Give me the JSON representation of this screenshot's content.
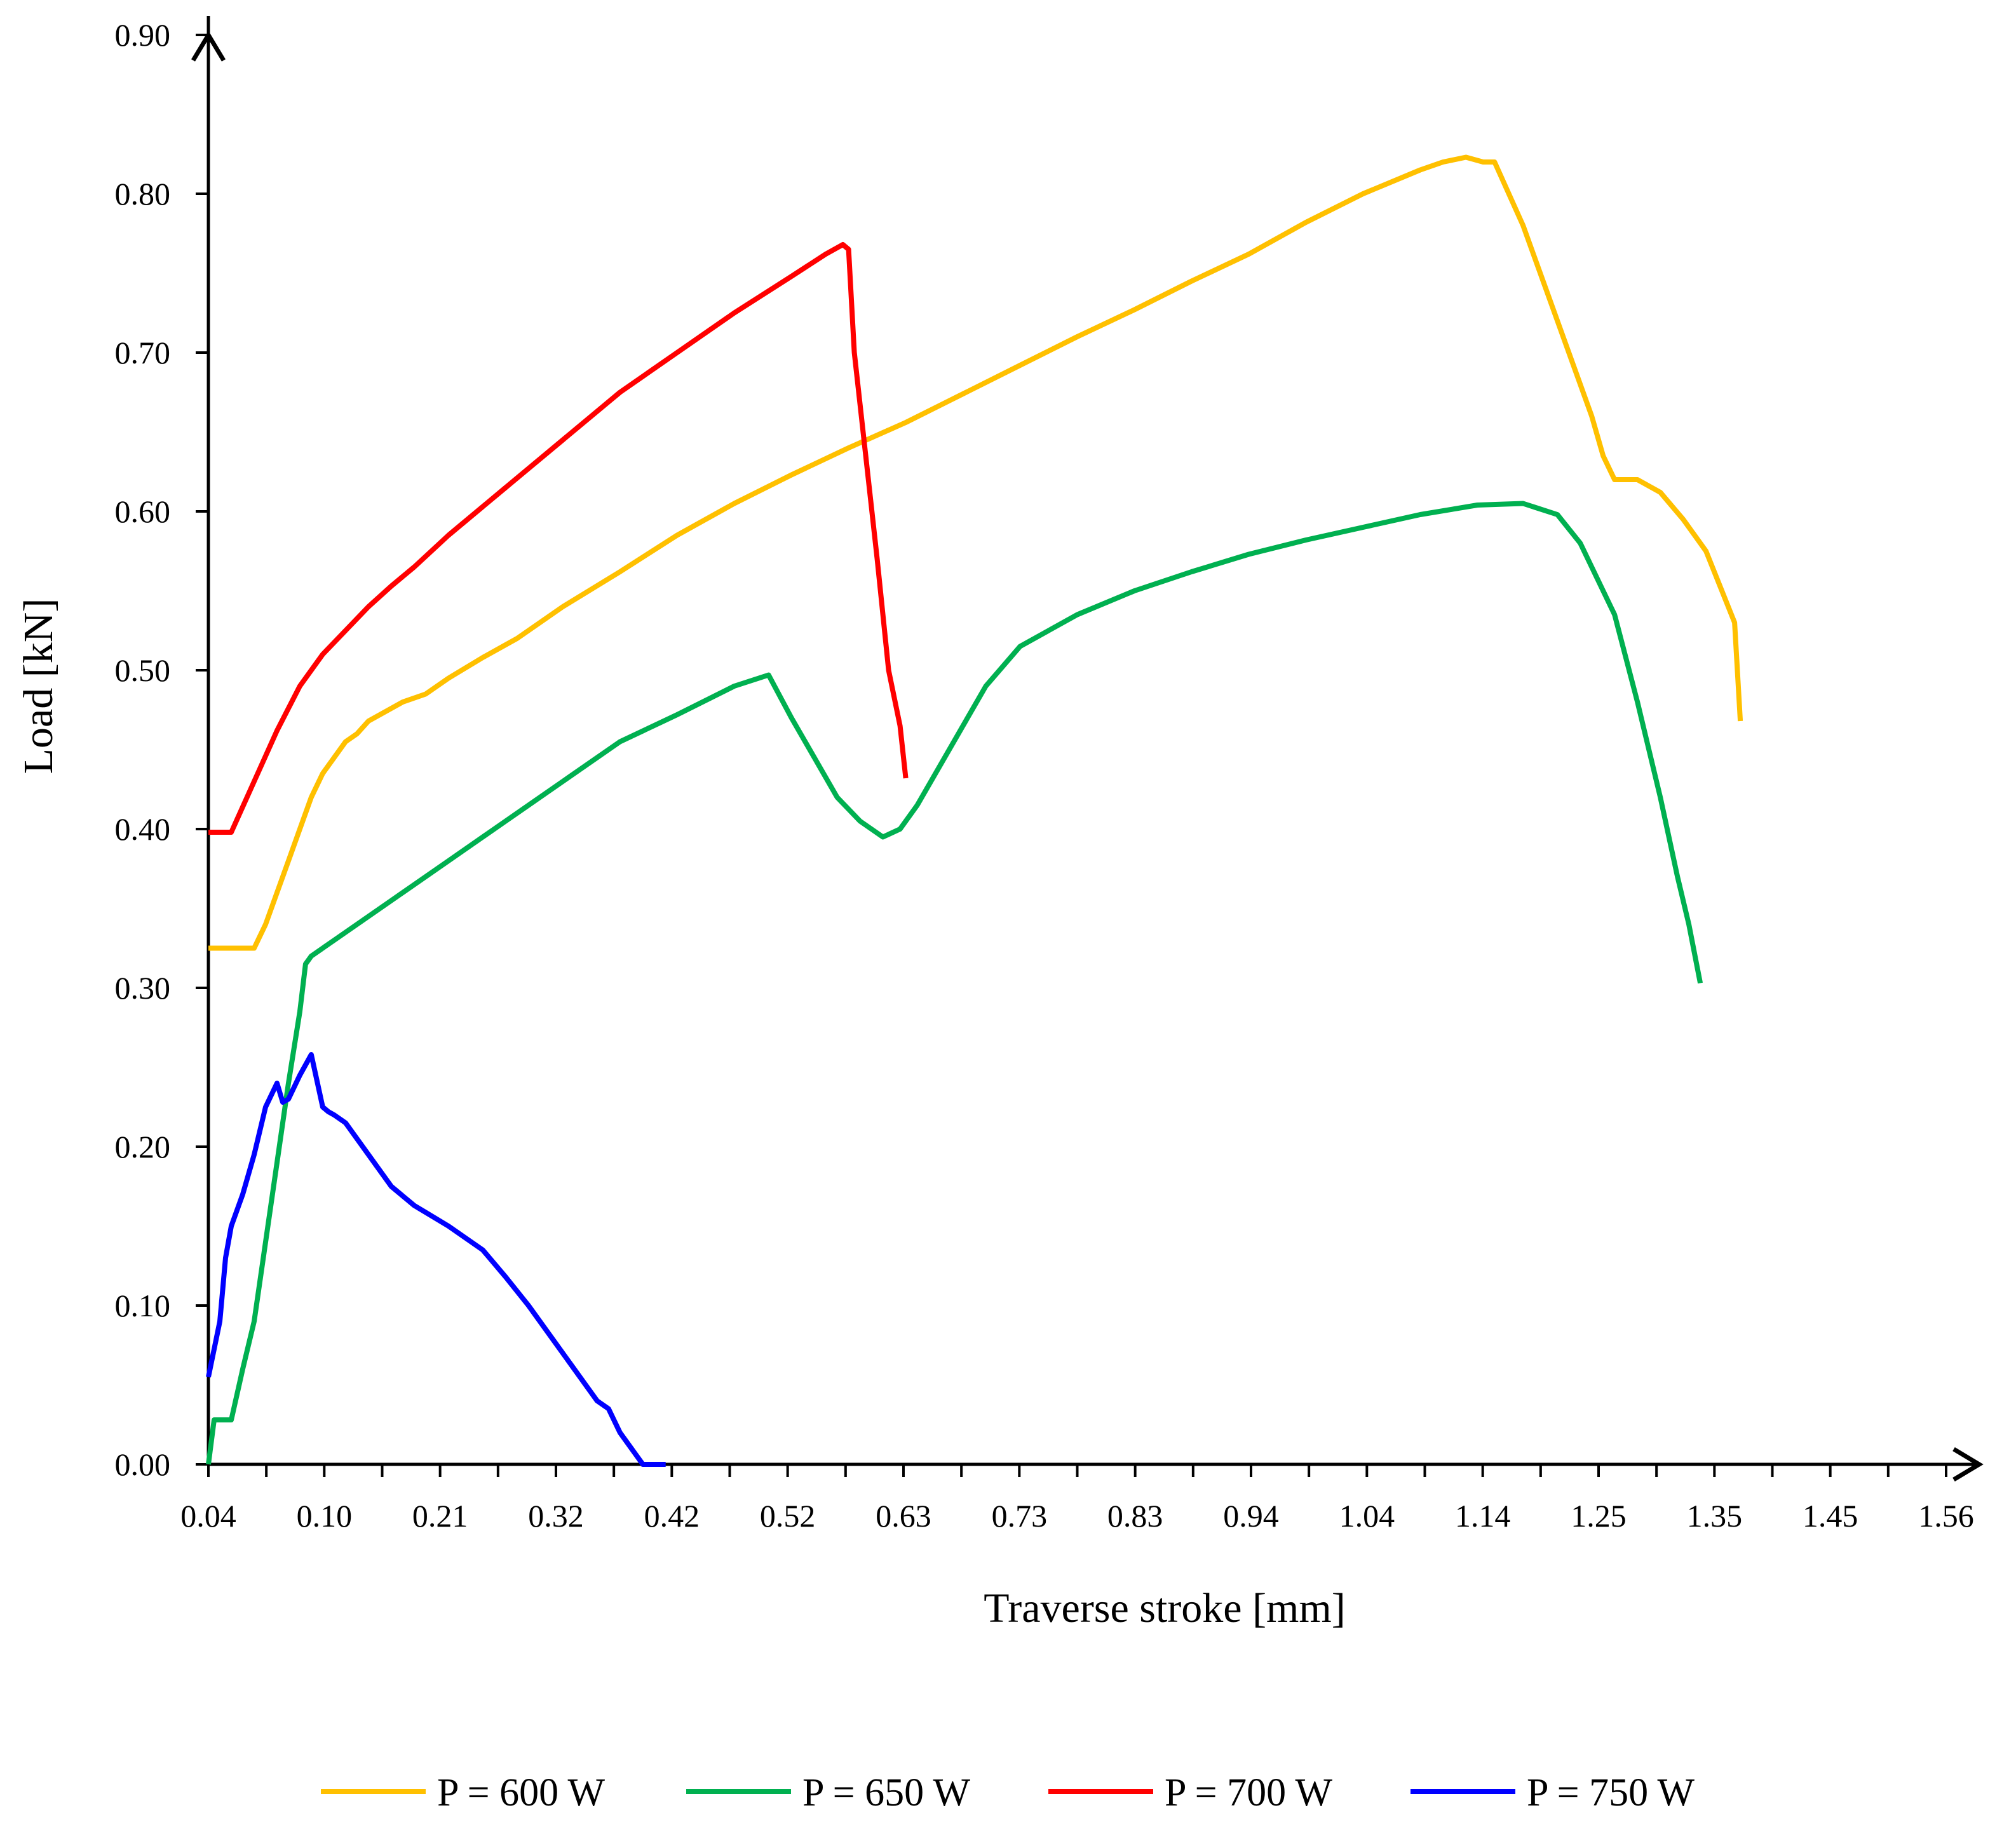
{
  "chart_data": {
    "type": "line",
    "title": "",
    "xlabel": "Traverse stroke [mm]",
    "ylabel": "Load [kN]",
    "xlim": [
      0.04,
      1.56
    ],
    "ylim": [
      0.0,
      0.9
    ],
    "x_tick_labels": [
      "0.04",
      "0.10",
      "0.21",
      "0.32",
      "0.42",
      "0.52",
      "0.63",
      "0.73",
      "0.83",
      "0.94",
      "1.04",
      "1.14",
      "1.25",
      "1.35",
      "1.45",
      "1.56"
    ],
    "y_tick_labels": [
      "0.00",
      "0.10",
      "0.20",
      "0.30",
      "0.40",
      "0.50",
      "0.60",
      "0.70",
      "0.80",
      "0.90"
    ],
    "grid": false,
    "legend_position": "bottom",
    "series": [
      {
        "name": "P = 600 W",
        "color": "#FFC000",
        "x": [
          0.04,
          0.08,
          0.09,
          0.1,
          0.11,
          0.12,
          0.13,
          0.14,
          0.15,
          0.16,
          0.17,
          0.18,
          0.19,
          0.21,
          0.23,
          0.25,
          0.28,
          0.31,
          0.35,
          0.4,
          0.45,
          0.5,
          0.55,
          0.6,
          0.65,
          0.7,
          0.75,
          0.8,
          0.85,
          0.9,
          0.95,
          1.0,
          1.05,
          1.1,
          1.12,
          1.14,
          1.155,
          1.165,
          1.19,
          1.21,
          1.23,
          1.25,
          1.26,
          1.27,
          1.29,
          1.31,
          1.33,
          1.35,
          1.365,
          1.375,
          1.38
        ],
        "y": [
          0.325,
          0.325,
          0.34,
          0.36,
          0.38,
          0.4,
          0.42,
          0.435,
          0.445,
          0.455,
          0.46,
          0.468,
          0.472,
          0.48,
          0.485,
          0.495,
          0.508,
          0.52,
          0.54,
          0.562,
          0.585,
          0.605,
          0.623,
          0.64,
          0.656,
          0.674,
          0.692,
          0.71,
          0.727,
          0.745,
          0.762,
          0.782,
          0.8,
          0.815,
          0.82,
          0.823,
          0.82,
          0.82,
          0.78,
          0.74,
          0.7,
          0.66,
          0.635,
          0.62,
          0.62,
          0.612,
          0.595,
          0.575,
          0.548,
          0.53,
          0.468
        ]
      },
      {
        "name": "P = 650 W",
        "color": "#00B050",
        "x": [
          0.04,
          0.045,
          0.06,
          0.07,
          0.08,
          0.09,
          0.1,
          0.11,
          0.12,
          0.125,
          0.13,
          0.15,
          0.17,
          0.2,
          0.25,
          0.3,
          0.35,
          0.4,
          0.45,
          0.5,
          0.53,
          0.55,
          0.57,
          0.59,
          0.61,
          0.63,
          0.645,
          0.66,
          0.68,
          0.7,
          0.72,
          0.75,
          0.8,
          0.85,
          0.9,
          0.95,
          1.0,
          1.05,
          1.1,
          1.15,
          1.19,
          1.22,
          1.24,
          1.25,
          1.27,
          1.29,
          1.3,
          1.31,
          1.325,
          1.335,
          1.345
        ],
        "y": [
          0.0,
          0.028,
          0.028,
          0.06,
          0.09,
          0.14,
          0.19,
          0.24,
          0.285,
          0.315,
          0.32,
          0.33,
          0.34,
          0.355,
          0.38,
          0.405,
          0.43,
          0.455,
          0.472,
          0.49,
          0.497,
          0.47,
          0.445,
          0.42,
          0.405,
          0.395,
          0.4,
          0.415,
          0.44,
          0.465,
          0.49,
          0.515,
          0.535,
          0.55,
          0.562,
          0.573,
          0.582,
          0.59,
          0.598,
          0.604,
          0.605,
          0.598,
          0.58,
          0.565,
          0.535,
          0.48,
          0.45,
          0.42,
          0.37,
          0.34,
          0.303
        ]
      },
      {
        "name": "P = 700 W",
        "color": "#FF0000",
        "x": [
          0.04,
          0.06,
          0.08,
          0.1,
          0.12,
          0.14,
          0.16,
          0.18,
          0.2,
          0.22,
          0.25,
          0.3,
          0.35,
          0.4,
          0.45,
          0.5,
          0.55,
          0.58,
          0.595,
          0.6,
          0.605,
          0.615,
          0.625,
          0.635,
          0.645,
          0.65
        ],
        "y": [
          0.398,
          0.398,
          0.43,
          0.462,
          0.49,
          0.51,
          0.525,
          0.54,
          0.553,
          0.565,
          0.585,
          0.615,
          0.645,
          0.675,
          0.7,
          0.725,
          0.748,
          0.762,
          0.768,
          0.765,
          0.7,
          0.635,
          0.57,
          0.5,
          0.465,
          0.432
        ]
      },
      {
        "name": "P = 750 W",
        "color": "#0000FF",
        "x": [
          0.04,
          0.05,
          0.055,
          0.06,
          0.07,
          0.08,
          0.09,
          0.1,
          0.105,
          0.11,
          0.12,
          0.13,
          0.14,
          0.145,
          0.15,
          0.16,
          0.17,
          0.18,
          0.2,
          0.22,
          0.25,
          0.28,
          0.3,
          0.32,
          0.34,
          0.36,
          0.38,
          0.39,
          0.4,
          0.41,
          0.42,
          0.43,
          0.44
        ],
        "y": [
          0.055,
          0.09,
          0.13,
          0.15,
          0.17,
          0.195,
          0.225,
          0.24,
          0.228,
          0.23,
          0.245,
          0.258,
          0.225,
          0.222,
          0.22,
          0.215,
          0.205,
          0.195,
          0.175,
          0.163,
          0.15,
          0.135,
          0.118,
          0.1,
          0.08,
          0.06,
          0.04,
          0.035,
          0.02,
          0.01,
          0.0,
          0.0,
          0.0
        ]
      }
    ]
  }
}
